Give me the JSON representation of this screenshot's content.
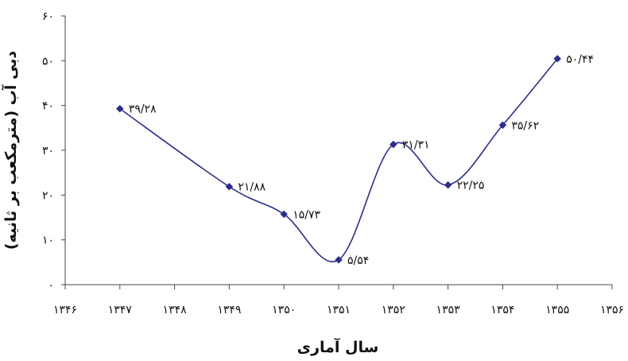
{
  "chart_data": {
    "type": "line",
    "title": "",
    "xlabel": "سال آماری",
    "ylabel": "دبی آب (مترمکعب بر ثانیه)",
    "xlim": [
      1346,
      1356
    ],
    "ylim": [
      0,
      60
    ],
    "x_ticks": [
      1346,
      1347,
      1348,
      1349,
      1350,
      1351,
      1352,
      1353,
      1354,
      1355,
      1356
    ],
    "x_tick_labels": [
      "۱۳۴۶",
      "۱۳۴۷",
      "۱۳۴۸",
      "۱۳۴۹",
      "۱۳۵۰",
      "۱۳۵۱",
      "۱۳۵۲",
      "۱۳۵۳",
      "۱۳۵۴",
      "۱۳۵۵",
      "۱۳۵۶"
    ],
    "y_ticks": [
      0,
      10,
      20,
      30,
      40,
      50,
      60
    ],
    "y_tick_labels": [
      "۰",
      "۱۰",
      "۲۰",
      "۳۰",
      "۴۰",
      "۵۰",
      "۶۰"
    ],
    "grid": false,
    "series": [
      {
        "color": "#2b2f8a",
        "marker": "diamond",
        "smooth": true,
        "x": [
          1347,
          1349,
          1350,
          1351,
          1352,
          1353,
          1354,
          1355
        ],
        "y": [
          39.28,
          21.88,
          15.73,
          5.54,
          31.31,
          22.25,
          35.62,
          50.44
        ],
        "labels": [
          "۳۹/۲۸",
          "۲۱/۸۸",
          "۱۵/۷۳",
          "۵/۵۴",
          "۳۱/۳۱",
          "۲۲/۲۵",
          "۳۵/۶۲",
          "۵۰/۴۴"
        ]
      }
    ]
  }
}
